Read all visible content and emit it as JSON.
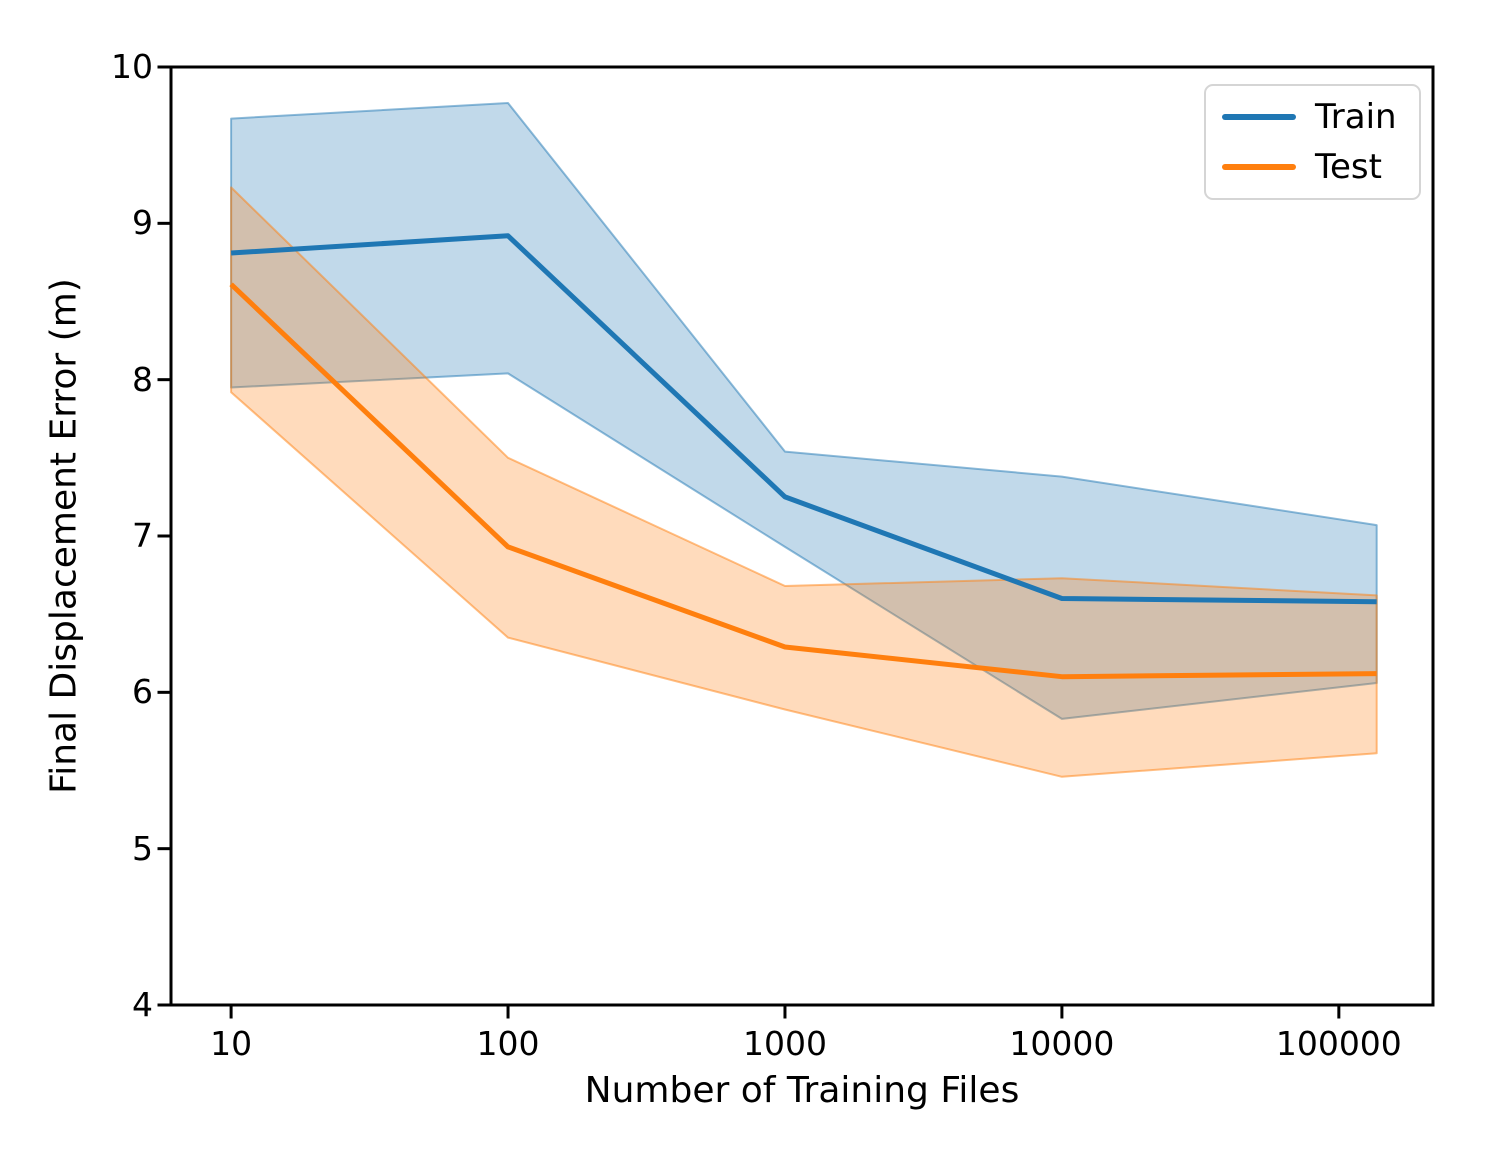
{
  "chart_data": {
    "type": "line",
    "title": "",
    "xlabel": "Number of Training Files",
    "ylabel": "Final Displacement Error (m)",
    "x_scale": "log",
    "grid": false,
    "legend_position": "upper right",
    "background_color": "#ffffff",
    "axis_color": "#000000",
    "band_opacity": 0.28,
    "band_edge_opacity": 0.5,
    "x": [
      10,
      100,
      1000,
      10000,
      137000
    ],
    "x_tick_values": [
      10,
      100,
      1000,
      10000,
      100000
    ],
    "x_tick_labels": [
      "10",
      "100",
      "1000",
      "10000",
      "100000"
    ],
    "y_tick_values": [
      4,
      5,
      6,
      7,
      8,
      9,
      10
    ],
    "y_tick_labels": [
      "4",
      "5",
      "6",
      "7",
      "8",
      "9",
      "10"
    ],
    "ylim": [
      4,
      10
    ],
    "xlim_log10": [
      0.783,
      5.34
    ],
    "series": [
      {
        "name": "Train",
        "color": "#1f77b4",
        "values": [
          8.81,
          8.92,
          7.25,
          6.6,
          6.58
        ],
        "band_lower": [
          7.95,
          8.04,
          6.93,
          5.83,
          6.06
        ],
        "band_upper": [
          9.67,
          9.77,
          7.54,
          7.38,
          7.07
        ]
      },
      {
        "name": "Test",
        "color": "#ff7f0e",
        "values": [
          8.61,
          6.93,
          6.29,
          6.1,
          6.12
        ],
        "band_lower": [
          7.92,
          6.35,
          5.89,
          5.46,
          5.61
        ],
        "band_upper": [
          9.23,
          7.5,
          6.68,
          6.73,
          6.62
        ]
      }
    ]
  }
}
